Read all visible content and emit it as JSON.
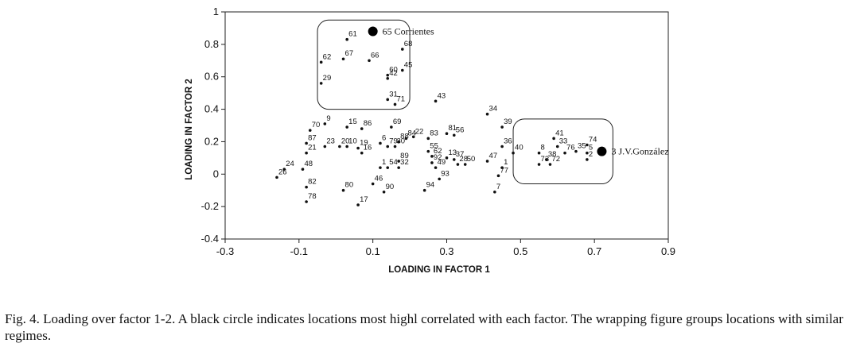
{
  "caption": "Fig. 4. Loading over factor 1-2. A black circle indicates locations most highl correlated with each factor. The wrapping figure groups locations with similar regimes.",
  "chart_data": {
    "type": "scatter",
    "xlabel": "LOADING IN FACTOR 1",
    "ylabel": "LOADING IN FACTOR 2",
    "xlim": [
      -0.3,
      0.9
    ],
    "ylim": [
      -0.4,
      1.0
    ],
    "xticks": [
      "-0.3",
      "-0.1",
      "0.1",
      "0.3",
      "0.5",
      "0.7",
      "0.9"
    ],
    "yticks": [
      "-0.4",
      "-0.2",
      "0",
      "0.2",
      "0.4",
      "0.6",
      "0.8",
      "1"
    ],
    "grid": false,
    "points": [
      {
        "label": "61",
        "x": 0.03,
        "y": 0.83
      },
      {
        "label": "67",
        "x": 0.02,
        "y": 0.71
      },
      {
        "label": "62",
        "x": -0.04,
        "y": 0.69
      },
      {
        "label": "66",
        "x": 0.09,
        "y": 0.7
      },
      {
        "label": "68",
        "x": 0.18,
        "y": 0.77
      },
      {
        "label": "60",
        "x": 0.14,
        "y": 0.61
      },
      {
        "label": "45",
        "x": 0.18,
        "y": 0.64
      },
      {
        "label": "42",
        "x": 0.14,
        "y": 0.59
      },
      {
        "label": "29",
        "x": -0.04,
        "y": 0.56
      },
      {
        "label": "31",
        "x": 0.14,
        "y": 0.46
      },
      {
        "label": "71",
        "x": 0.16,
        "y": 0.43
      },
      {
        "label": "43",
        "x": 0.27,
        "y": 0.45
      },
      {
        "label": "34",
        "x": 0.41,
        "y": 0.37
      },
      {
        "label": "39",
        "x": 0.45,
        "y": 0.29
      },
      {
        "label": "9",
        "x": -0.03,
        "y": 0.31
      },
      {
        "label": "70",
        "x": -0.07,
        "y": 0.27
      },
      {
        "label": "15",
        "x": 0.03,
        "y": 0.29
      },
      {
        "label": "86",
        "x": 0.07,
        "y": 0.28
      },
      {
        "label": "69",
        "x": 0.15,
        "y": 0.29
      },
      {
        "label": "81",
        "x": 0.3,
        "y": 0.25
      },
      {
        "label": "56",
        "x": 0.32,
        "y": 0.24
      },
      {
        "label": "83",
        "x": 0.25,
        "y": 0.22
      },
      {
        "label": "22",
        "x": 0.21,
        "y": 0.23
      },
      {
        "label": "84",
        "x": 0.19,
        "y": 0.22
      },
      {
        "label": "88",
        "x": 0.17,
        "y": 0.2
      },
      {
        "label": "6",
        "x": 0.12,
        "y": 0.19
      },
      {
        "label": "87",
        "x": -0.08,
        "y": 0.19
      },
      {
        "label": "23",
        "x": -0.03,
        "y": 0.17
      },
      {
        "label": "20",
        "x": 0.01,
        "y": 0.17
      },
      {
        "label": "10",
        "x": 0.03,
        "y": 0.17
      },
      {
        "label": "19",
        "x": 0.06,
        "y": 0.16
      },
      {
        "label": "79",
        "x": 0.14,
        "y": 0.17
      },
      {
        "label": "30",
        "x": 0.16,
        "y": 0.17
      },
      {
        "label": "36",
        "x": 0.45,
        "y": 0.17
      },
      {
        "label": "41",
        "x": 0.59,
        "y": 0.22
      },
      {
        "label": "33",
        "x": 0.6,
        "y": 0.17
      },
      {
        "label": "74",
        "x": 0.68,
        "y": 0.18
      },
      {
        "label": "55",
        "x": 0.25,
        "y": 0.14
      },
      {
        "label": "21",
        "x": -0.08,
        "y": 0.13
      },
      {
        "label": "16",
        "x": 0.07,
        "y": 0.13
      },
      {
        "label": "40",
        "x": 0.48,
        "y": 0.13
      },
      {
        "label": "8",
        "x": 0.55,
        "y": 0.13
      },
      {
        "label": "76",
        "x": 0.62,
        "y": 0.13
      },
      {
        "label": "35",
        "x": 0.65,
        "y": 0.14
      },
      {
        "label": "5",
        "x": 0.68,
        "y": 0.13
      },
      {
        "label": "62",
        "x": 0.26,
        "y": 0.11
      },
      {
        "label": "13",
        "x": 0.3,
        "y": 0.1
      },
      {
        "label": "37",
        "x": 0.32,
        "y": 0.09
      },
      {
        "label": "89",
        "x": 0.17,
        "y": 0.08
      },
      {
        "label": "38",
        "x": 0.57,
        "y": 0.09
      },
      {
        "label": "2",
        "x": 0.68,
        "y": 0.09
      },
      {
        "label": "92",
        "x": 0.26,
        "y": 0.07
      },
      {
        "label": "28",
        "x": 0.33,
        "y": 0.06
      },
      {
        "label": "50",
        "x": 0.35,
        "y": 0.06
      },
      {
        "label": "47",
        "x": 0.41,
        "y": 0.08
      },
      {
        "label": "73",
        "x": 0.55,
        "y": 0.06
      },
      {
        "label": "72",
        "x": 0.58,
        "y": 0.06
      },
      {
        "label": "24",
        "x": -0.14,
        "y": 0.03
      },
      {
        "label": "48",
        "x": -0.09,
        "y": 0.03
      },
      {
        "label": "1",
        "x": 0.12,
        "y": 0.04
      },
      {
        "label": "54",
        "x": 0.14,
        "y": 0.04
      },
      {
        "label": "32",
        "x": 0.17,
        "y": 0.04
      },
      {
        "label": "49",
        "x": 0.27,
        "y": 0.04
      },
      {
        "label": "1",
        "x": 0.45,
        "y": 0.04
      },
      {
        "label": "26",
        "x": -0.16,
        "y": -0.02
      },
      {
        "label": "93",
        "x": 0.28,
        "y": -0.03
      },
      {
        "label": "77",
        "x": 0.44,
        "y": -0.01
      },
      {
        "label": "46",
        "x": 0.1,
        "y": -0.06
      },
      {
        "label": "82",
        "x": -0.08,
        "y": -0.08
      },
      {
        "label": "80",
        "x": 0.02,
        "y": -0.1
      },
      {
        "label": "90",
        "x": 0.13,
        "y": -0.11
      },
      {
        "label": "94",
        "x": 0.24,
        "y": -0.1
      },
      {
        "label": "7",
        "x": 0.43,
        "y": -0.11
      },
      {
        "label": "78",
        "x": -0.08,
        "y": -0.17
      },
      {
        "label": "17",
        "x": 0.06,
        "y": -0.19
      }
    ],
    "highlight_points": [
      {
        "label": "65 Corrientes",
        "x": 0.1,
        "y": 0.88
      },
      {
        "label": "3  J.V.González",
        "x": 0.72,
        "y": 0.14
      }
    ],
    "groups": [
      {
        "x": [
          -0.05,
          0.2
        ],
        "y": [
          0.4,
          0.95
        ]
      },
      {
        "x": [
          0.48,
          0.75
        ],
        "y": [
          -0.06,
          0.34
        ]
      }
    ]
  }
}
